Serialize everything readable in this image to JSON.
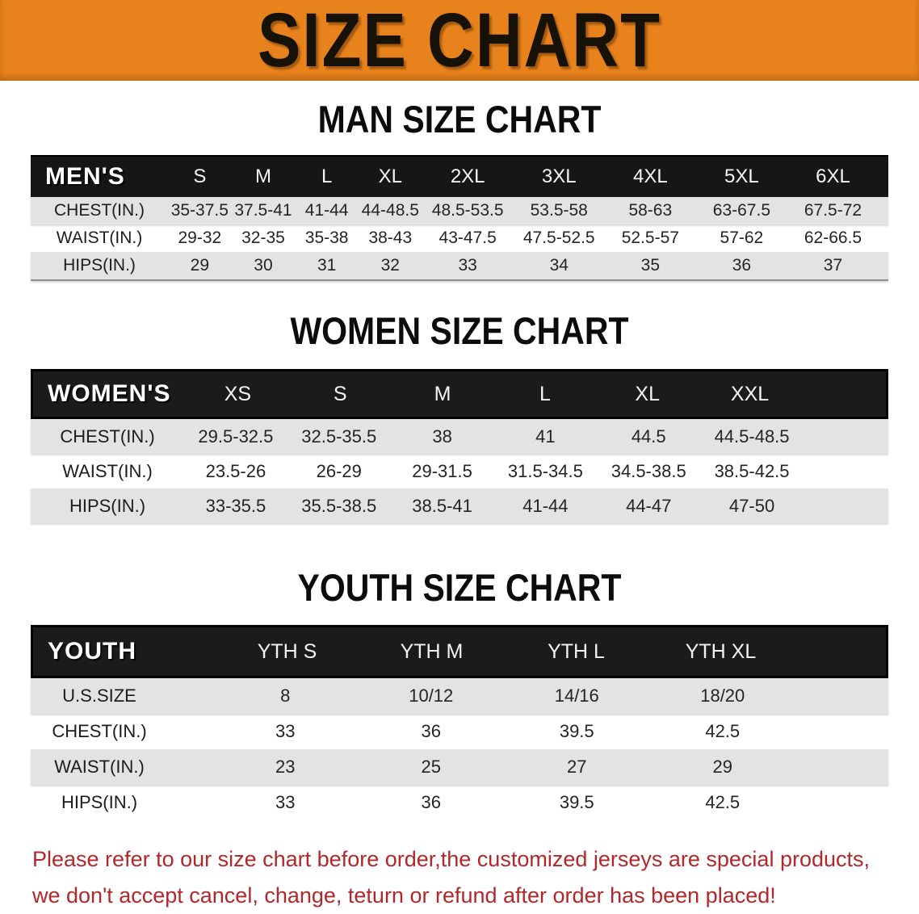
{
  "banner": {
    "title": "SIZE CHART"
  },
  "colors": {
    "banner_orange": "#e8821c",
    "header_black": "#161616",
    "row_gray": "#e3e3e3",
    "footer_red": "#b2282a"
  },
  "sections": [
    {
      "heading": "MAN SIZE CHART",
      "table": {
        "header_label": "MEN'S",
        "columns": [
          "S",
          "M",
          "L",
          "XL",
          "2XL",
          "3XL",
          "4XL",
          "5XL",
          "6XL"
        ],
        "rows": [
          {
            "label": "CHEST(IN.)",
            "values": [
              "35-37.5",
              "37.5-41",
              "41-44",
              "44-48.5",
              "48.5-53.5",
              "53.5-58",
              "58-63",
              "63-67.5",
              "67.5-72"
            ]
          },
          {
            "label": "WAIST(IN.)",
            "values": [
              "29-32",
              "32-35",
              "35-38",
              "38-43",
              "43-47.5",
              "47.5-52.5",
              "52.5-57",
              "57-62",
              "62-66.5"
            ]
          },
          {
            "label": "HIPS(IN.)",
            "values": [
              "29",
              "30",
              "31",
              "32",
              "33",
              "34",
              "35",
              "36",
              "37"
            ]
          }
        ]
      }
    },
    {
      "heading": "WOMEN SIZE CHART",
      "table": {
        "header_label": "WOMEN'S",
        "columns": [
          "XS",
          "S",
          "M",
          "L",
          "XL",
          "XXL"
        ],
        "rows": [
          {
            "label": "CHEST(IN.)",
            "values": [
              "29.5-32.5",
              "32.5-35.5",
              "38",
              "41",
              "44.5",
              "44.5-48.5"
            ]
          },
          {
            "label": "WAIST(IN.)",
            "values": [
              "23.5-26",
              "26-29",
              "29-31.5",
              "31.5-34.5",
              "34.5-38.5",
              "38.5-42.5"
            ]
          },
          {
            "label": "HIPS(IN.)",
            "values": [
              "33-35.5",
              "35.5-38.5",
              "38.5-41",
              "41-44",
              "44-47",
              "47-50"
            ]
          }
        ]
      }
    },
    {
      "heading": "YOUTH SIZE CHART",
      "table": {
        "header_label": "YOUTH",
        "columns": [
          "YTH S",
          "YTH M",
          "YTH L",
          "YTH XL"
        ],
        "rows": [
          {
            "label": "U.S.SIZE",
            "values": [
              "8",
              "10/12",
              "14/16",
              "18/20"
            ]
          },
          {
            "label": "CHEST(IN.)",
            "values": [
              "33",
              "36",
              "39.5",
              "42.5"
            ]
          },
          {
            "label": "WAIST(IN.)",
            "values": [
              "23",
              "25",
              "27",
              "29"
            ]
          },
          {
            "label": "HIPS(IN.)",
            "values": [
              "33",
              "36",
              "39.5",
              "42.5"
            ]
          }
        ]
      }
    }
  ],
  "footer": {
    "line1": "Please refer to our size chart before order,the customized jerseys are special products,",
    "line2": "we don't accept cancel, change, teturn or refund after order has been placed!"
  }
}
